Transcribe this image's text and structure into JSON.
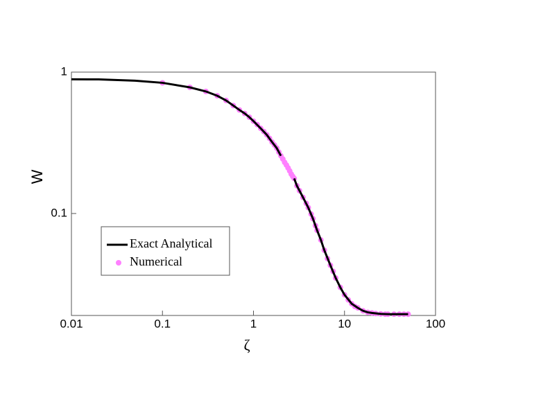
{
  "chart_data": {
    "type": "line",
    "xlabel": "ζ",
    "ylabel": "W",
    "xscale": "log",
    "yscale": "log",
    "xlim": [
      0.01,
      100
    ],
    "ylim": [
      0.019,
      1
    ],
    "xticks": [
      0.01,
      0.1,
      1,
      10,
      100
    ],
    "yticks": [
      0.1,
      1
    ],
    "legend": "lower left",
    "series": [
      {
        "name": "Exact Analytical",
        "color": "#000000",
        "style": "line",
        "x": [
          0.01,
          0.02,
          0.05,
          0.1,
          0.2,
          0.3,
          0.4,
          0.5,
          0.6,
          0.7,
          0.8,
          0.9,
          1.0,
          1.2,
          1.4,
          1.6,
          1.8,
          2.0,
          2.4,
          2.8,
          3.0,
          3.5,
          4,
          4.5,
          5,
          5.5,
          6,
          7,
          8,
          9,
          10,
          12,
          14,
          16,
          18,
          20,
          25,
          30,
          40,
          50
        ],
        "values": [
          0.89,
          0.888,
          0.87,
          0.84,
          0.78,
          0.73,
          0.68,
          0.63,
          0.58,
          0.54,
          0.51,
          0.48,
          0.45,
          0.4,
          0.36,
          0.32,
          0.29,
          0.256,
          null,
          0.177,
          0.157,
          0.13,
          0.11,
          0.092,
          0.076,
          0.065,
          0.055,
          0.043,
          0.035,
          0.03,
          0.0266,
          0.023,
          0.0215,
          0.0205,
          0.02,
          0.0198,
          0.0195,
          0.0194,
          0.0194,
          0.0194
        ]
      },
      {
        "name": "Numerical",
        "color": "#ff80ff",
        "style": "points",
        "x": [
          0.1,
          0.2,
          0.3,
          0.4,
          0.5,
          0.6,
          0.7,
          0.8,
          0.9,
          1.0,
          1.1,
          1.2,
          1.3,
          1.4,
          1.5,
          1.6,
          1.7,
          1.8,
          1.9,
          2.0,
          2.1,
          2.2,
          2.3,
          2.4,
          2.5,
          2.6,
          2.7,
          2.8,
          3.0,
          3.2,
          3.5,
          3.8,
          4,
          4.3,
          4.5,
          4.8,
          5,
          5.5,
          6,
          6.5,
          7,
          7.5,
          8,
          9,
          10,
          11,
          12,
          13,
          14,
          16,
          18,
          20,
          22,
          25,
          28,
          30,
          35,
          40,
          45,
          50
        ],
        "values": [
          0.84,
          0.78,
          0.73,
          0.68,
          0.63,
          0.58,
          0.54,
          0.51,
          0.48,
          0.45,
          0.425,
          0.4,
          0.38,
          0.36,
          0.34,
          0.32,
          0.305,
          0.29,
          0.272,
          0.256,
          0.243,
          0.23,
          0.22,
          0.21,
          0.2,
          0.19,
          0.183,
          0.177,
          0.157,
          0.145,
          0.13,
          0.118,
          0.11,
          0.099,
          0.092,
          0.082,
          0.076,
          0.065,
          0.055,
          0.048,
          0.043,
          0.039,
          0.035,
          0.03,
          0.0266,
          0.0245,
          0.023,
          0.022,
          0.0215,
          0.0205,
          0.02,
          0.0198,
          0.0196,
          0.0195,
          0.0194,
          0.0194,
          0.0194,
          0.0194,
          0.0194,
          0.0194
        ]
      }
    ]
  }
}
